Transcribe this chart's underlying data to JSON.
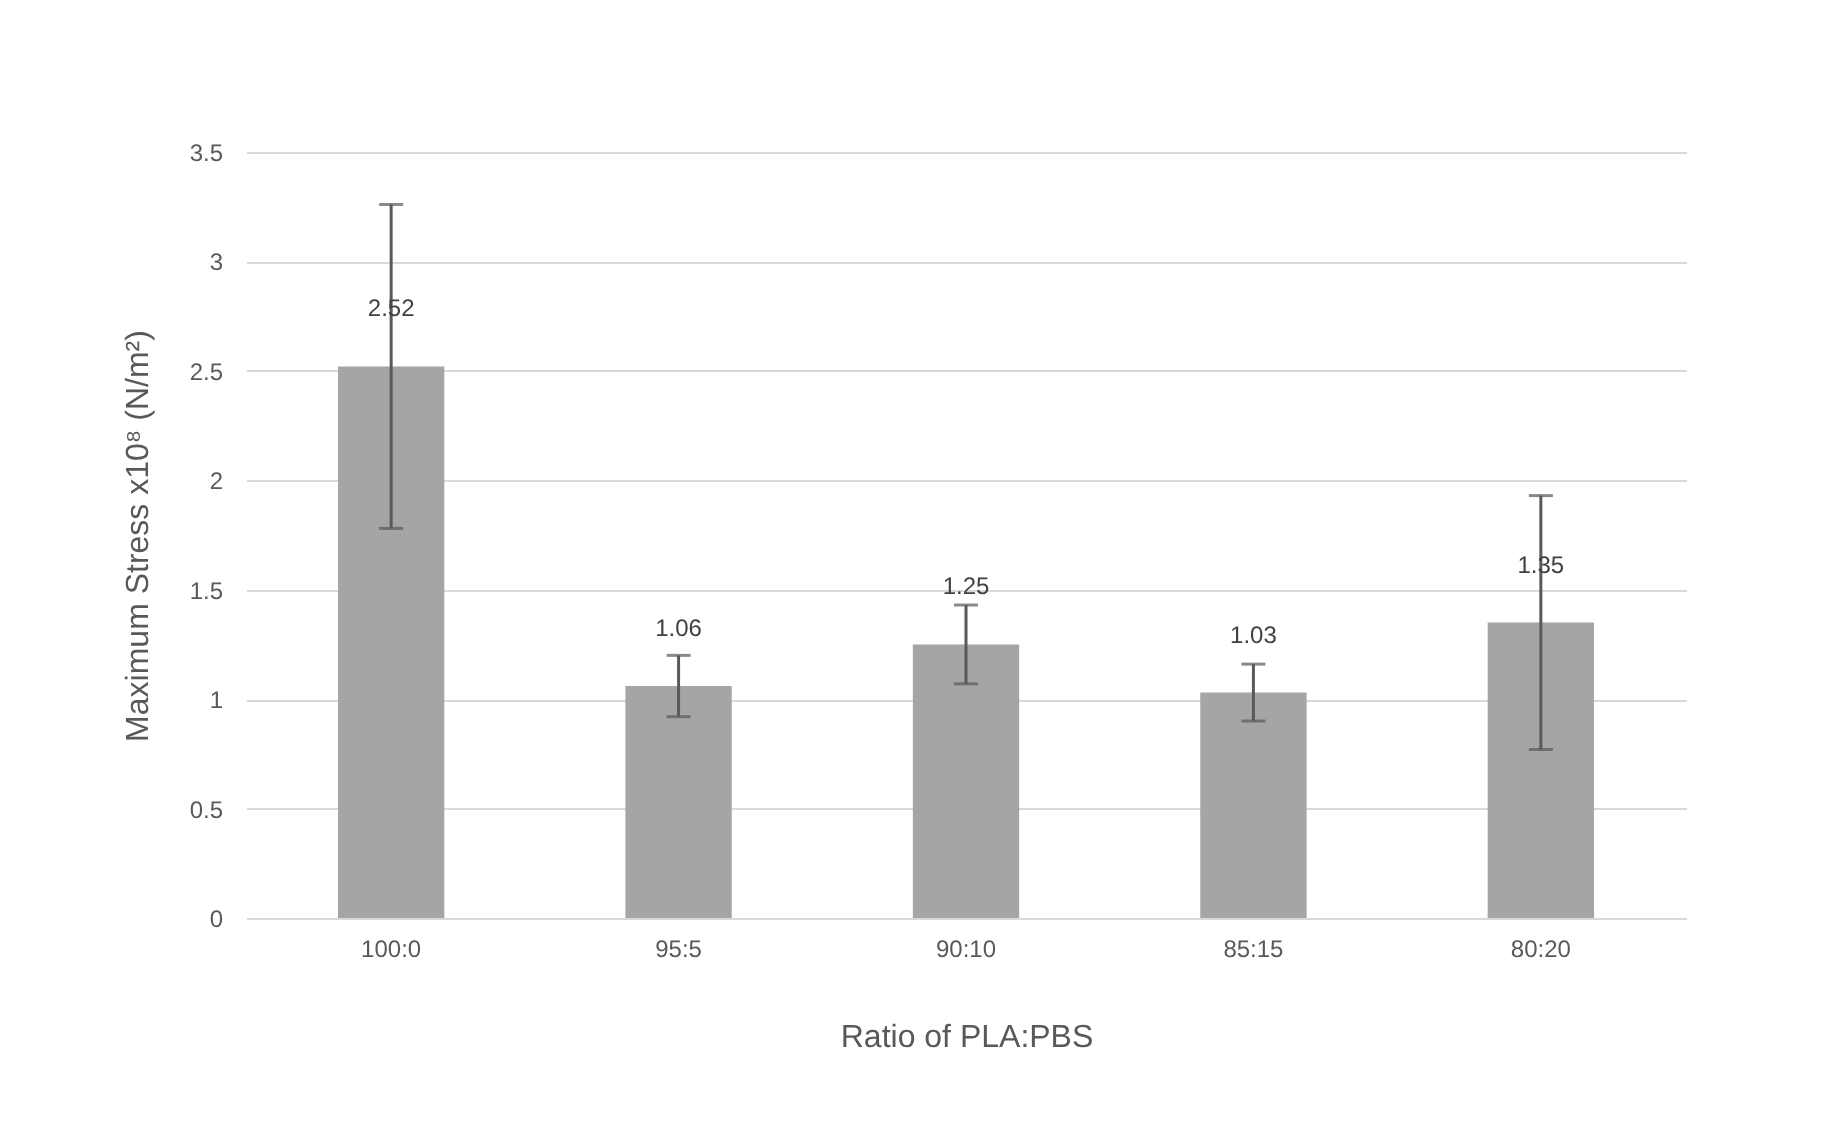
{
  "chart_data": {
    "type": "bar",
    "xlabel": "Ratio of PLA:PBS",
    "ylabel": "Maximum Stress x10⁸ (N/m²)",
    "categories": [
      "100:0",
      "95:5",
      "90:10",
      "85:15",
      "80:20"
    ],
    "values": [
      2.52,
      1.06,
      1.25,
      1.03,
      1.35
    ],
    "errors": [
      0.74,
      0.14,
      0.18,
      0.13,
      0.58
    ],
    "color": "#a5a5a5",
    "data_labels": true,
    "ylim": [
      0,
      3.5
    ],
    "yticks": [
      0,
      0.5,
      1,
      1.5,
      2,
      2.5,
      3,
      3.5
    ],
    "grid": "y"
  }
}
